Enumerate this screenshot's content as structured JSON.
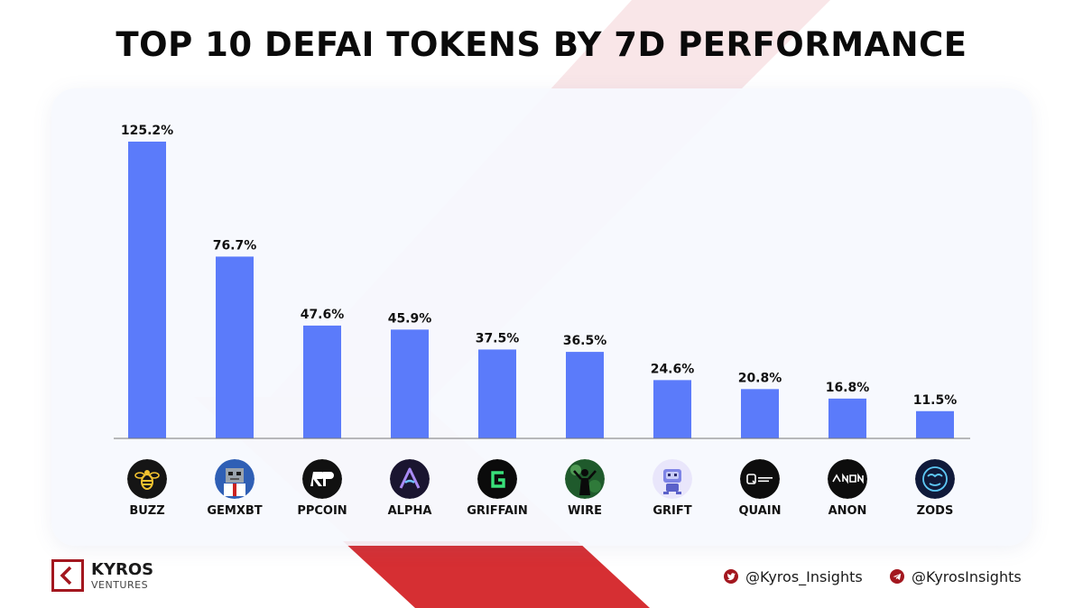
{
  "header": {
    "title": "TOP 10 DEFAI TOKENS BY 7D PERFORMANCE"
  },
  "chart_data": {
    "type": "bar",
    "title": "TOP 10 DEFAI TOKENS BY 7D PERFORMANCE",
    "xlabel": "",
    "ylabel": "",
    "categories": [
      "BUZZ",
      "GEMXBT",
      "PPCOIN",
      "ALPHA",
      "GRIFFAIN",
      "WIRE",
      "GRIFT",
      "QUAIN",
      "ANON",
      "ZODS"
    ],
    "values": [
      125.2,
      76.7,
      47.6,
      45.9,
      37.5,
      36.5,
      24.6,
      20.8,
      16.8,
      11.5
    ],
    "value_labels": [
      "125.2%",
      "76.7%",
      "47.6%",
      "45.9%",
      "37.5%",
      "36.5%",
      "24.6%",
      "20.8%",
      "16.8%",
      "11.5%"
    ],
    "unit": "%",
    "ylim": [
      0,
      125.2
    ],
    "grid": false,
    "legend": "none",
    "bar_color": "#5b7bfa",
    "logo_icons": [
      "buzz-bee-icon",
      "gemxbt-robot-icon",
      "ppcoin-rp-icon",
      "alpha-a-icon",
      "griffain-g-icon",
      "wire-figure-icon",
      "grift-robot-icon",
      "quain-q-icon",
      "anon-wordmark-icon",
      "zods-mask-icon"
    ]
  },
  "footer": {
    "brand_name": "KYROS",
    "brand_sub": "VENTURES",
    "twitter_handle": "@Kyros_Insights",
    "telegram_handle": "@KyrosInsights"
  },
  "colors": {
    "accent": "#a3171f",
    "bar": "#5b7bfa",
    "background_card": "#f6f8fe"
  }
}
